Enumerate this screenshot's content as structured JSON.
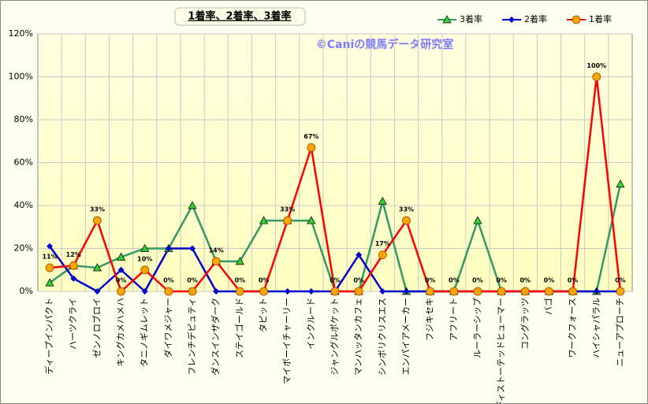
{
  "chart_data": {
    "type": "line",
    "title": "1着率、2着率、3着率",
    "watermark": "©Caniの競馬データ研究室",
    "categories": [
      "ディープインパクト",
      "ハーツクライ",
      "ゼンノロブロイ",
      "キングカメハメハ",
      "タニノギムレット",
      "ダイワメジャー",
      "フレンチデピュティ",
      "ダンスインザダーク",
      "ステイゴールド",
      "タピット",
      "マイボーイチャーリー",
      "インクルード",
      "ジャングルポケット",
      "マンハッタンカフェ",
      "シンボリクリスエス",
      "エンパイアメーカー",
      "フジキセキ",
      "アフリート",
      "ルーラーシップ",
      "ディストーテッドヒューマー",
      "コングラッツ",
      "バゴ",
      "ワークフォース",
      "ハイシャパラル",
      "ニューアプローチ"
    ],
    "series": [
      {
        "name": "3着率",
        "color": "#339966",
        "marker": "triangle",
        "values": [
          4,
          12,
          11,
          16,
          20,
          20,
          40,
          14,
          14,
          33,
          33,
          33,
          0,
          0,
          42,
          0,
          0,
          0,
          33,
          0,
          0,
          0,
          0,
          0,
          50
        ]
      },
      {
        "name": "2着率",
        "color": "#0000cc",
        "marker": "diamond",
        "values": [
          21,
          6,
          0,
          10,
          0,
          20,
          20,
          0,
          0,
          0,
          0,
          0,
          0,
          17,
          0,
          0,
          0,
          0,
          0,
          0,
          0,
          0,
          0,
          0,
          0
        ]
      },
      {
        "name": "1着率",
        "color": "#ff0000",
        "marker": "circle",
        "values": [
          11,
          12,
          33,
          0,
          10,
          0,
          0,
          14,
          0,
          0,
          33,
          67,
          0,
          0,
          17,
          33,
          0,
          0,
          0,
          0,
          0,
          0,
          0,
          100,
          0
        ],
        "value_labels": [
          "11%",
          "12%",
          "33%",
          "0%",
          "10%",
          "0%",
          "0%",
          "14%",
          "0%",
          "0%",
          "33%",
          "67%",
          "0%",
          "0%",
          "17%",
          "33%",
          "0%",
          "0%",
          "0%",
          "0%",
          "0%",
          "0%",
          "0%",
          "100%",
          "0%"
        ]
      }
    ],
    "ylim": [
      0,
      120
    ],
    "yticks": [
      {
        "value": 0,
        "label": "0%"
      },
      {
        "value": 20,
        "label": "20%"
      },
      {
        "value": 40,
        "label": "40%"
      },
      {
        "value": 60,
        "label": "60%"
      },
      {
        "value": 80,
        "label": "80%"
      },
      {
        "value": 100,
        "label": "100%"
      },
      {
        "value": 120,
        "label": "120%"
      }
    ],
    "grid": true,
    "legend": "top-right"
  }
}
